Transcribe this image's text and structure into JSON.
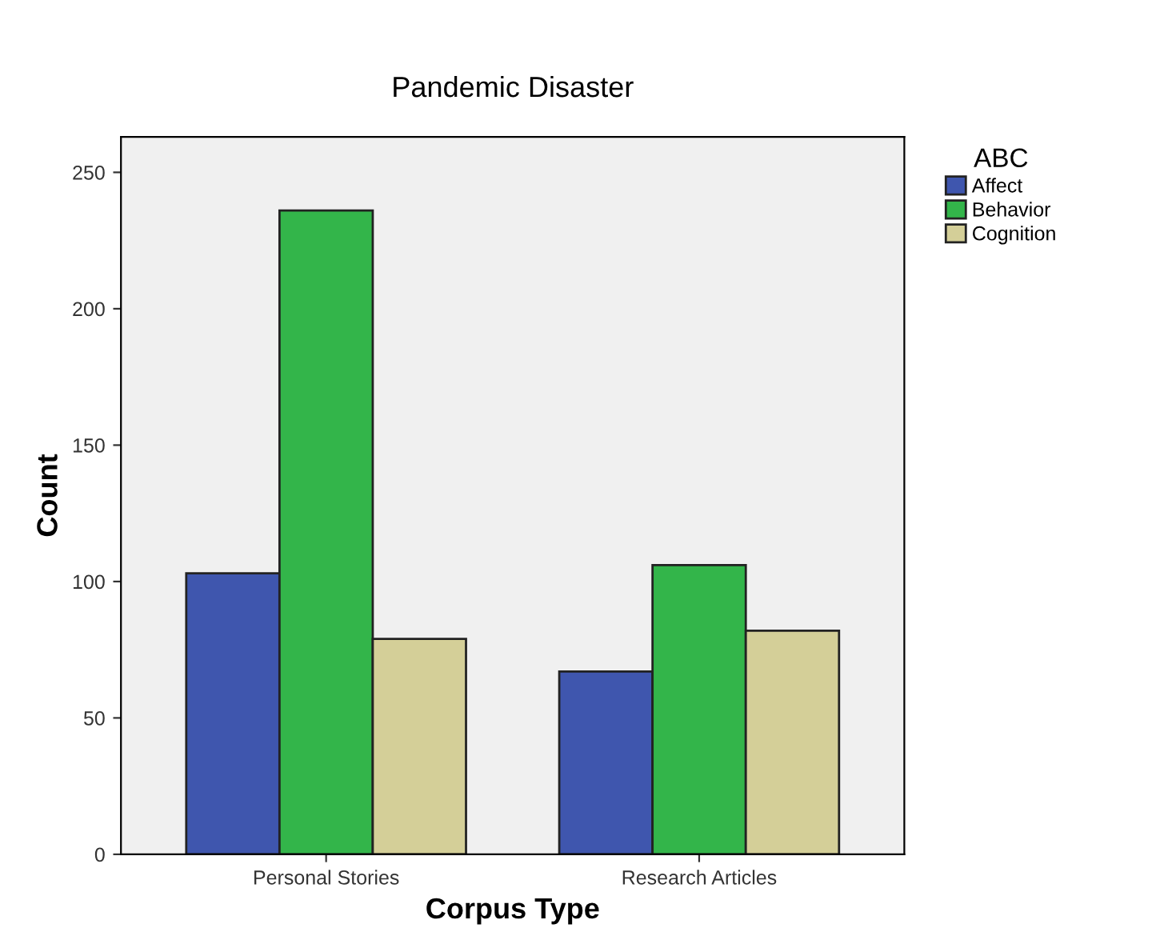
{
  "chart_data": {
    "type": "bar",
    "title": "Pandemic Disaster",
    "xlabel": "Corpus Type",
    "ylabel": "Count",
    "legend_title": "ABC",
    "categories": [
      "Personal Stories",
      "Research Articles"
    ],
    "series": [
      {
        "name": "Affect",
        "color": "#3f56ae",
        "values": [
          103,
          67
        ]
      },
      {
        "name": "Behavior",
        "color": "#33b54a",
        "values": [
          236,
          106
        ]
      },
      {
        "name": "Cognition",
        "color": "#d4cf98",
        "values": [
          79,
          82
        ]
      }
    ],
    "ylim": [
      0,
      263
    ],
    "yticks": [
      0,
      50,
      100,
      150,
      200,
      250
    ],
    "grid": false,
    "legend": "top right"
  }
}
